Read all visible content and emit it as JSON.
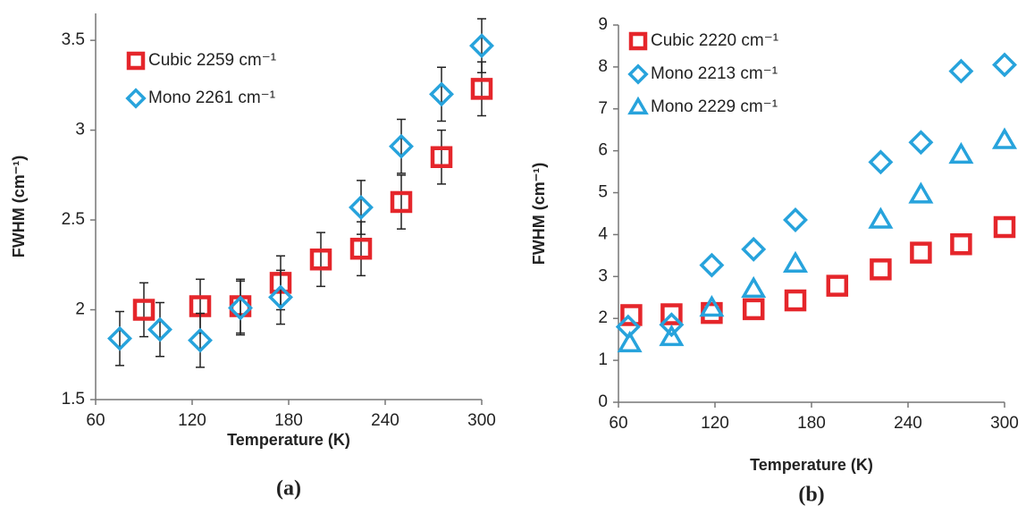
{
  "chart_data": [
    {
      "type": "scatter",
      "panel_label": "(a)",
      "x_label": "Temperature (K)",
      "y_label": "FWHM (cm⁻¹)",
      "xlim": [
        60,
        300
      ],
      "xticks": [
        60,
        120,
        180,
        240,
        300
      ],
      "ylim": [
        1.5,
        3.65
      ],
      "yticks": [
        1.5,
        2,
        2.5,
        3,
        3.5
      ],
      "series": [
        {
          "name": "Cubic 2259 cm⁻¹",
          "color": "#e5262b",
          "marker": "square",
          "x": [
            90,
            125,
            150,
            175,
            200,
            225,
            250,
            275,
            300
          ],
          "values": [
            2.0,
            2.02,
            2.02,
            2.15,
            2.28,
            2.34,
            2.6,
            2.85,
            3.23
          ],
          "errors": [
            0.15,
            0.15,
            0.15,
            0.15,
            0.15,
            0.15,
            0.15,
            0.15,
            0.15
          ]
        },
        {
          "name": "Mono 2261 cm⁻¹",
          "color": "#27a3dc",
          "marker": "diamond",
          "x": [
            75,
            100,
            125,
            150,
            175,
            225,
            250,
            275,
            300
          ],
          "values": [
            1.84,
            1.89,
            1.83,
            2.01,
            2.07,
            2.57,
            2.91,
            3.2,
            3.47
          ],
          "errors": [
            0.15,
            0.15,
            0.15,
            0.15,
            0.15,
            0.15,
            0.15,
            0.15,
            0.15
          ]
        }
      ]
    },
    {
      "type": "scatter",
      "panel_label": "(b)",
      "x_label": "Temperature (K)",
      "y_label": "FWHM (cm⁻¹)",
      "xlim": [
        60,
        300
      ],
      "xticks": [
        60,
        120,
        180,
        240,
        300
      ],
      "ylim": [
        0,
        9
      ],
      "yticks": [
        0,
        1,
        2,
        3,
        4,
        5,
        6,
        7,
        8,
        9
      ],
      "series": [
        {
          "name": "Cubic 2220 cm⁻¹",
          "color": "#e5262b",
          "marker": "square",
          "x": [
            68,
            93,
            118,
            144,
            170,
            196,
            223,
            248,
            273,
            300
          ],
          "values": [
            2.08,
            2.1,
            2.13,
            2.22,
            2.43,
            2.78,
            3.17,
            3.57,
            3.77,
            4.18
          ]
        },
        {
          "name": "Mono 2213 cm⁻¹",
          "color": "#27a3dc",
          "marker": "diamond",
          "x": [
            66,
            93,
            118,
            144,
            170,
            223,
            248,
            273,
            300
          ],
          "values": [
            1.8,
            1.85,
            3.27,
            3.65,
            4.35,
            5.73,
            6.2,
            7.9,
            8.05
          ]
        },
        {
          "name": "Mono 2229 cm⁻¹",
          "color": "#27a3dc",
          "marker": "triangle",
          "x": [
            67,
            93,
            118,
            144,
            170,
            223,
            248,
            273,
            300
          ],
          "values": [
            1.4,
            1.55,
            2.25,
            2.7,
            3.3,
            4.35,
            4.95,
            5.9,
            6.25
          ]
        }
      ]
    }
  ]
}
